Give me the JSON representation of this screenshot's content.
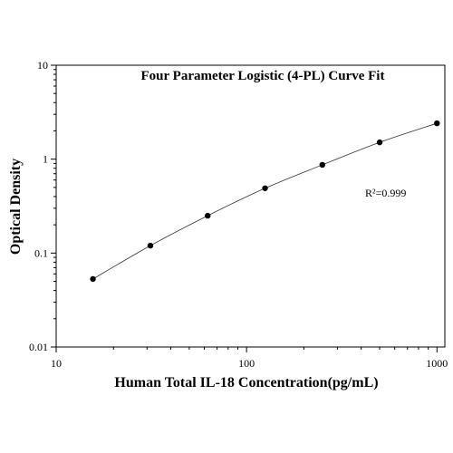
{
  "chart_data": {
    "type": "scatter",
    "title": "Four Parameter Logistic (4-PL) Curve Fit",
    "x_label": "Human Total IL-18 Concentration(pg/mL)",
    "y_label": "Optical Density",
    "annotation": "R²=0.999",
    "x": [
      15.6,
      31.25,
      62.5,
      125,
      250,
      500,
      1000
    ],
    "values": [
      0.053,
      0.12,
      0.25,
      0.49,
      0.87,
      1.51,
      2.41
    ],
    "color": "#000000",
    "xscale": "log",
    "yscale": "log",
    "xlim": [
      10,
      1100
    ],
    "xticks": [
      10,
      100,
      1000
    ],
    "ylim": [
      0.01,
      10
    ],
    "yticks": [
      0.01,
      0.1,
      1,
      10
    ]
  }
}
